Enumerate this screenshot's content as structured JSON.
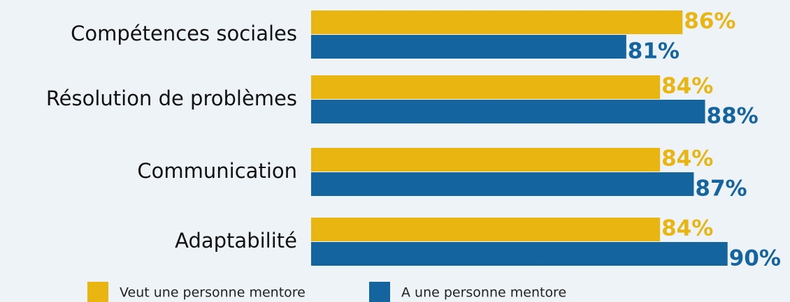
{
  "chart_data": {
    "type": "bar",
    "orientation": "horizontal",
    "categories": [
      "Compétences sociales",
      "Résolution de problèmes",
      "Communication",
      "Adaptabilité"
    ],
    "series": [
      {
        "name": "Veut une personne mentore",
        "color": "#e8b511",
        "values": [
          86,
          84,
          84,
          84
        ],
        "value_labels": [
          "86%",
          "84%",
          "84%",
          "84%"
        ]
      },
      {
        "name": "A une personne mentore",
        "color": "#1464a0",
        "values": [
          81,
          88,
          87,
          90
        ],
        "value_labels": [
          "81%",
          "88%",
          "87%",
          "90%"
        ]
      }
    ],
    "legend": "bottom"
  }
}
